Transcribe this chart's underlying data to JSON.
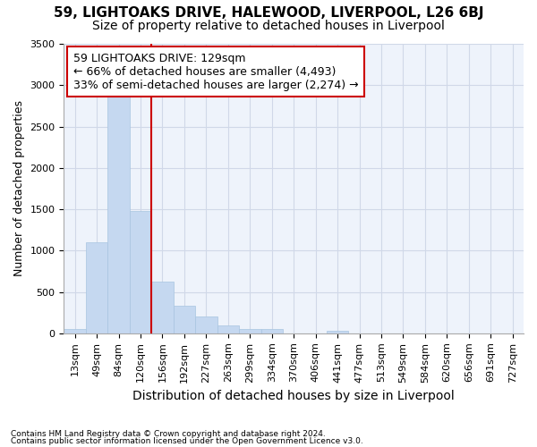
{
  "title1": "59, LIGHTOAKS DRIVE, HALEWOOD, LIVERPOOL, L26 6BJ",
  "title2": "Size of property relative to detached houses in Liverpool",
  "xlabel": "Distribution of detached houses by size in Liverpool",
  "ylabel": "Number of detached properties",
  "footnote1": "Contains HM Land Registry data © Crown copyright and database right 2024.",
  "footnote2": "Contains public sector information licensed under the Open Government Licence v3.0.",
  "bin_labels": [
    "13sqm",
    "49sqm",
    "84sqm",
    "120sqm",
    "156sqm",
    "192sqm",
    "227sqm",
    "263sqm",
    "299sqm",
    "334sqm",
    "370sqm",
    "406sqm",
    "441sqm",
    "477sqm",
    "513sqm",
    "549sqm",
    "584sqm",
    "620sqm",
    "656sqm",
    "691sqm",
    "727sqm"
  ],
  "bar_values": [
    50,
    1100,
    2860,
    1480,
    630,
    330,
    200,
    100,
    50,
    50,
    0,
    0,
    30,
    0,
    0,
    0,
    0,
    0,
    0,
    0,
    0
  ],
  "bar_color": "#c5d8f0",
  "bar_edgecolor": "#a8c4e0",
  "bar_alpha": 1.0,
  "grid_color": "#d0d8e8",
  "background_color": "#ffffff",
  "plot_bg_color": "#eef3fb",
  "redline_x": 3.5,
  "redline_color": "#cc0000",
  "annotation_text": "59 LIGHTOAKS DRIVE: 129sqm\n← 66% of detached houses are smaller (4,493)\n33% of semi-detached houses are larger (2,274) →",
  "annotation_box_color": "#ffffff",
  "annotation_box_edgecolor": "#cc0000",
  "ylim": [
    0,
    3500
  ],
  "yticks": [
    0,
    500,
    1000,
    1500,
    2000,
    2500,
    3000,
    3500
  ],
  "title1_fontsize": 11,
  "title2_fontsize": 10,
  "xlabel_fontsize": 10,
  "ylabel_fontsize": 9,
  "tick_fontsize": 8,
  "annotation_fontsize": 9
}
